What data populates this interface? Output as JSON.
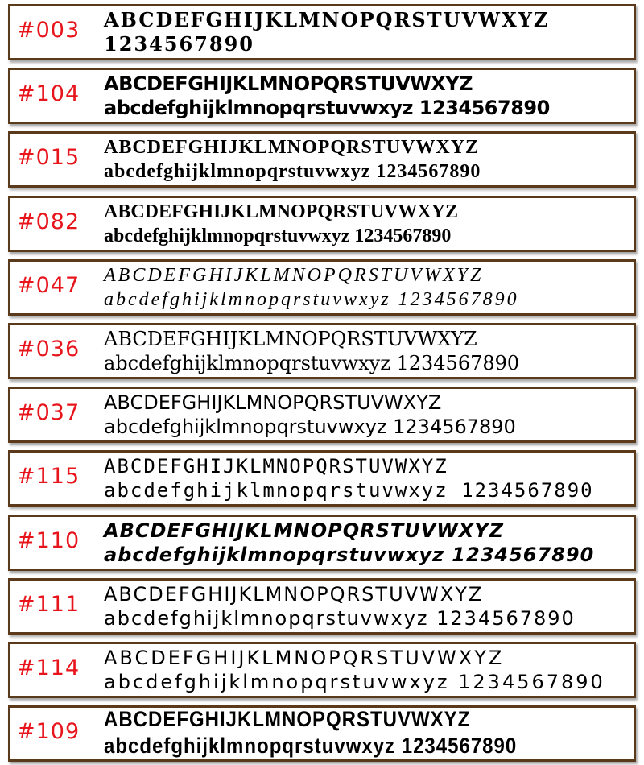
{
  "samples": [
    {
      "code": "#003",
      "line1": "ABCDEFGHIJKLMNOPQRSTUVWXYZ",
      "line2": "1234567890"
    },
    {
      "code": "#104",
      "line1": "ABCDEFGHIJKLMNOPQRSTUVWXYZ",
      "line2": "abcdefghijklmnopqrstuvwxyz  1234567890"
    },
    {
      "code": "#015",
      "line1": "ABCDEFGHIJKLMNOPQRSTUVWXYZ",
      "line2": "abcdefghijklmnopqrstuvwxyz  1234567890"
    },
    {
      "code": "#082",
      "line1": "ABCDEFGHIJKLMNOPQRSTUVWXYZ",
      "line2": "abcdefghijklmnopqrstuvwxyz 1234567890"
    },
    {
      "code": "#047",
      "line1": "ABCDEFGHIJKLMNOPQRSTUVWXYZ",
      "line2": "abcdefghijklmnopqrstuvwxyz  1234567890"
    },
    {
      "code": "#036",
      "line1": "ABCDEFGHIJKLMNOPQRSTUVWXYZ",
      "line2": "abcdefghijklmnopqrstuvwxyz 1234567890"
    },
    {
      "code": "#037",
      "line1": "ABCDEFGHIJKLMNOPQRSTUVWXYZ",
      "line2": "abcdefghijklmnopqrstuvwxyz 1234567890"
    },
    {
      "code": "#115",
      "line1": "ABCDEFGHIJKLMNOPQRSTUVWXYZ",
      "line2": "abcdefghijklmnopqrstuvwxyz 1234567890"
    },
    {
      "code": "#110",
      "line1": "ABCDEFGHIJKLMNOPQRSTUVWXYZ",
      "line2": "abcdefghijklmnopqrstuvwxyz 1234567890"
    },
    {
      "code": "#111",
      "line1": "ABCDEFGHIJKLMNOPQRSTUVWXYZ",
      "line2": "abcdefghijklmnopqrstuvwxyz 1234567890"
    },
    {
      "code": "#114",
      "line1": "ABCDEFGHIJKLMNOPQRSTUVWXYZ",
      "line2": "abcdefghijklmnopqrstuvwxyz 1234567890"
    },
    {
      "code": "#109",
      "line1": "ABCDEFGHIJKLMNOPQRSTUVWXYZ",
      "line2": "abcdefghijklmnopqrstuvwxyz    1234567890"
    }
  ],
  "colors": {
    "code": "#e8141b",
    "border": "#5a3a1a"
  }
}
